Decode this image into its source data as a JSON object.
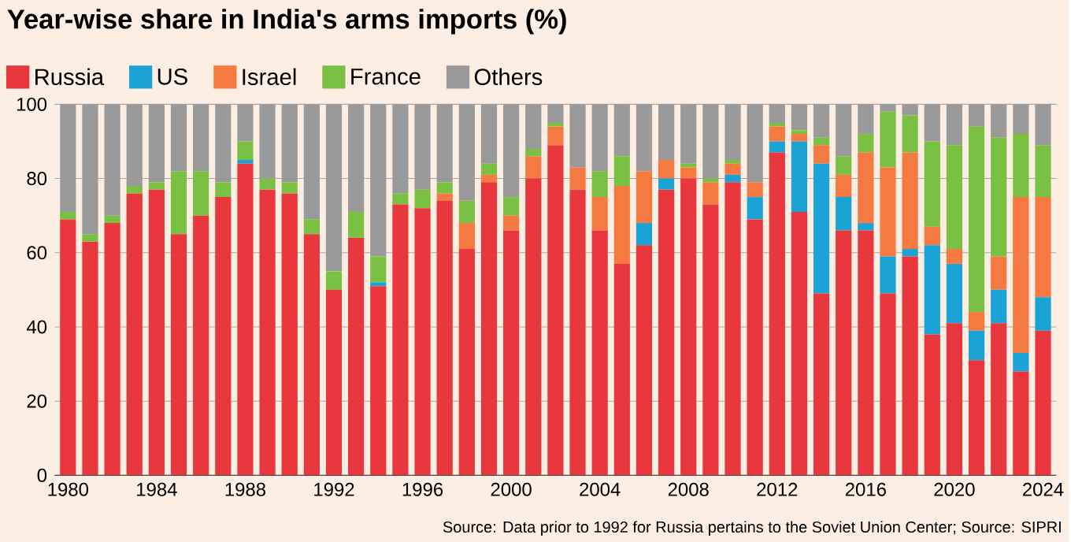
{
  "chart_data": {
    "type": "bar",
    "stacked": true,
    "title": "Year-wise share in India's arms imports (%)",
    "annotations": [
      "Source: Data prior to 1992 for Russia pertains to the Soviet Union Center; Source: SIPRI"
    ],
    "categories": [
      "1980",
      null,
      null,
      null,
      "1984",
      null,
      null,
      null,
      "1988",
      null,
      null,
      null,
      "1992",
      null,
      null,
      null,
      "1996",
      null,
      null,
      null,
      "2000",
      null,
      null,
      null,
      "2004",
      null,
      null,
      null,
      "2008",
      null,
      null,
      null,
      "2012",
      null,
      null,
      null,
      "2016",
      null,
      null,
      null,
      "2020",
      null,
      null,
      null,
      "2024"
    ],
    "series": [
      {
        "name": "Russia",
        "color": "#e8383d",
        "values": [
          69,
          63,
          68,
          76,
          77,
          65,
          70,
          75,
          84,
          77,
          76,
          65,
          50,
          64,
          51,
          73,
          72,
          74,
          61,
          79,
          66,
          80,
          89,
          77,
          66,
          57,
          62,
          77,
          80,
          73,
          79,
          69,
          87,
          71,
          49,
          66,
          66,
          49,
          59,
          38,
          41,
          31,
          41,
          28,
          39
        ]
      },
      {
        "name": "US",
        "color": "#1ba3d6",
        "values": [
          0,
          0,
          0,
          0,
          0,
          0,
          0,
          0,
          1,
          0,
          0,
          0,
          0,
          0,
          1,
          0,
          0,
          0,
          0,
          0,
          0,
          0,
          0,
          0,
          0,
          0,
          6,
          3,
          0,
          0,
          2,
          6,
          3,
          19,
          35,
          9,
          2,
          10,
          2,
          24,
          16,
          8,
          9,
          5,
          9
        ]
      },
      {
        "name": "Israel",
        "color": "#f47a42",
        "values": [
          0,
          0,
          0,
          0,
          0,
          0,
          0,
          0,
          0,
          0,
          0,
          0,
          0,
          0,
          0,
          0,
          0,
          2,
          7,
          2,
          4,
          6,
          5,
          6,
          9,
          21,
          14,
          5,
          3,
          6,
          3,
          4,
          4,
          2,
          5,
          6,
          19,
          24,
          26,
          5,
          4,
          5,
          9,
          42,
          27
        ]
      },
      {
        "name": "France",
        "color": "#7ac143",
        "values": [
          2,
          2,
          2,
          2,
          2,
          17,
          12,
          4,
          5,
          3,
          3,
          4,
          5,
          7,
          7,
          3,
          5,
          3,
          6,
          3,
          5,
          2,
          1,
          0,
          7,
          8,
          0,
          0,
          1,
          1,
          1,
          0,
          1,
          1,
          2,
          5,
          5,
          15,
          10,
          23,
          28,
          50,
          32,
          17,
          14
        ]
      },
      {
        "name": "Others",
        "color": "#9a9a9a",
        "values": [
          29,
          35,
          30,
          22,
          21,
          18,
          18,
          21,
          10,
          20,
          21,
          31,
          45,
          29,
          41,
          24,
          23,
          21,
          26,
          16,
          25,
          12,
          5,
          17,
          18,
          14,
          18,
          15,
          16,
          20,
          15,
          21,
          5,
          7,
          9,
          14,
          8,
          2,
          3,
          10,
          11,
          6,
          9,
          8,
          11
        ]
      }
    ],
    "ylim": [
      0,
      100
    ],
    "yticks": [
      0,
      20,
      40,
      60,
      80,
      100
    ],
    "grid": "y",
    "legend": "top left"
  }
}
